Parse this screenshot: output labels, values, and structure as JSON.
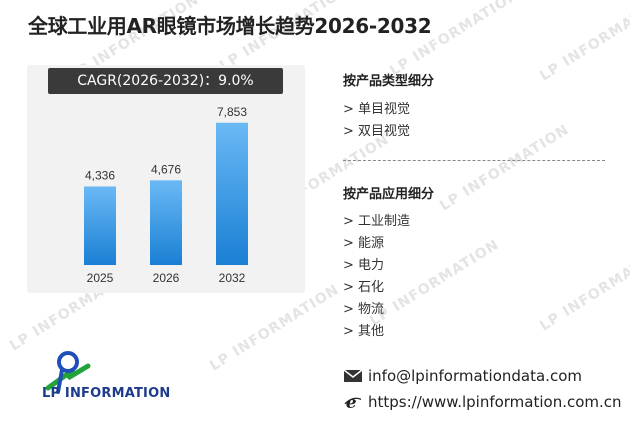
{
  "title": "全球工业用AR眼镜市场增长趋势2026-2032",
  "cagr_label": "CAGR(2026-2032)：9.0%",
  "chart_data": {
    "type": "bar",
    "title": "",
    "xlabel": "",
    "ylabel": "",
    "categories": [
      "2025",
      "2026",
      "2032"
    ],
    "values": [
      4336,
      4676,
      7853
    ],
    "value_labels": [
      "4,336",
      "4,676",
      "7,853"
    ],
    "ylim": [
      0,
      9000
    ],
    "grid": false,
    "colors": {
      "bar_top": "#6ab9f5",
      "bar_bottom": "#1a7fd4"
    }
  },
  "segments": {
    "by_type": {
      "heading": "按产品类型细分",
      "items": [
        "> 单目视觉",
        "> 双目视觉"
      ]
    },
    "by_application": {
      "heading": "按产品应用细分",
      "items": [
        "> 工业制造",
        "> 能源",
        "> 电力",
        "> 石化",
        "> 物流",
        "> 其他"
      ]
    }
  },
  "logo": {
    "text": "LP INFORMATION"
  },
  "contact": {
    "email": "info@lpinformationdata.com",
    "website": "https://www.lpinformation.com.cn"
  },
  "watermark_text": "LP INFORMATION"
}
